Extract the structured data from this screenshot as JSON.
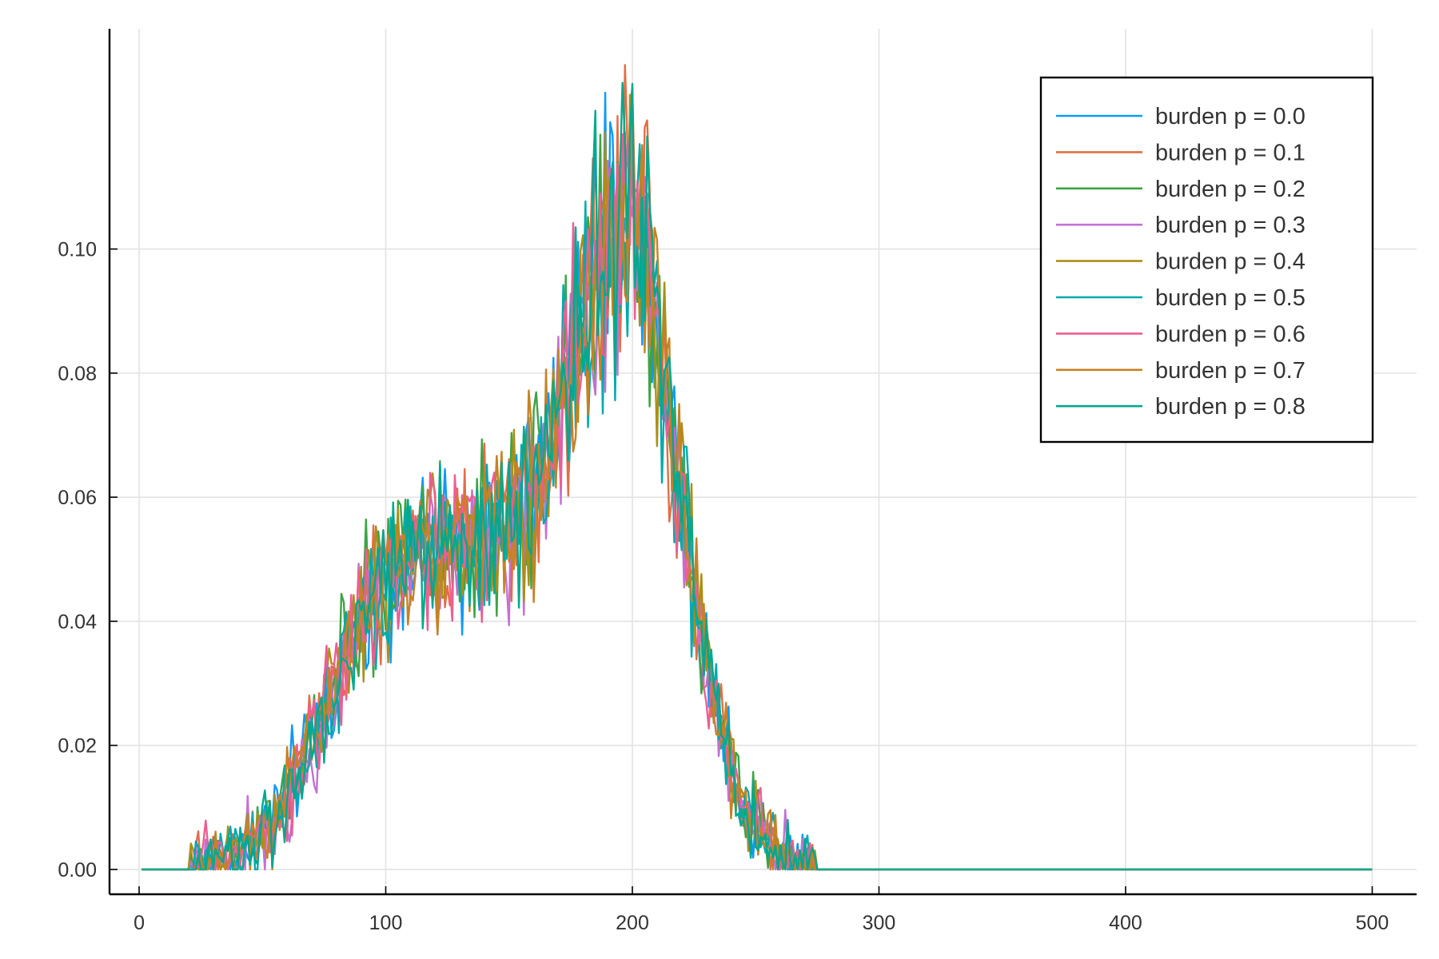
{
  "chart_data": {
    "type": "line",
    "title": "",
    "xlabel": "",
    "ylabel": "",
    "xlim": [
      -12,
      518
    ],
    "ylim": [
      -0.004,
      0.1355
    ],
    "xticks": [
      0,
      100,
      200,
      300,
      400,
      500
    ],
    "xtick_labels": [
      "0",
      "100",
      "200",
      "300",
      "400",
      "500"
    ],
    "yticks": [
      0.0,
      0.02,
      0.04,
      0.06,
      0.08,
      0.1
    ],
    "ytick_labels": [
      "0.00",
      "0.02",
      "0.04",
      "0.06",
      "0.08",
      "0.10"
    ],
    "grid": true,
    "legend_position": "top-right",
    "x_start": 1,
    "x_end": 500,
    "x_step": 1,
    "curve_anchors_x": [
      1,
      20,
      30,
      45,
      60,
      75,
      90,
      105,
      125,
      145,
      160,
      175,
      185,
      197,
      210,
      218,
      230,
      245,
      260,
      275,
      500
    ],
    "curve_anchors_y": [
      0,
      0,
      0.001,
      0.004,
      0.012,
      0.026,
      0.04,
      0.05,
      0.053,
      0.054,
      0.06,
      0.08,
      0.096,
      0.108,
      0.092,
      0.065,
      0.032,
      0.01,
      0.002,
      0,
      0
    ],
    "noise_amplitude": "approximately ±0.015 around the peak, proportional to value",
    "series": [
      {
        "name": "burden p = 0.0",
        "label": "burden p = 0.0",
        "color": "#0f9af3"
      },
      {
        "name": "burden p = 0.1",
        "label": "burden p = 0.1",
        "color": "#e26e46"
      },
      {
        "name": "burden p = 0.2",
        "label": "burden p = 0.2",
        "color": "#3ea345"
      },
      {
        "name": "burden p = 0.3",
        "label": "burden p = 0.3",
        "color": "#c371d2"
      },
      {
        "name": "burden p = 0.4",
        "label": "burden p = 0.4",
        "color": "#ac8e18"
      },
      {
        "name": "burden p = 0.5",
        "label": "burden p = 0.5",
        "color": "#00aaae"
      },
      {
        "name": "burden p = 0.6",
        "label": "burden p = 0.6",
        "color": "#ed5e93"
      },
      {
        "name": "burden p = 0.7",
        "label": "burden p = 0.7",
        "color": "#c68225"
      },
      {
        "name": "burden p = 0.8",
        "label": "burden p = 0.8",
        "color": "#00a98d"
      }
    ]
  }
}
